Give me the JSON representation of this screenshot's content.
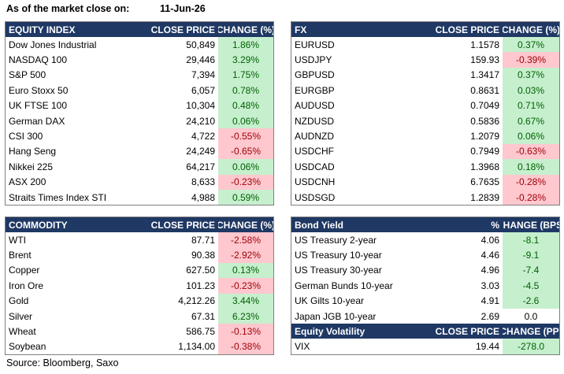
{
  "header": {
    "title": "As of the market close on:",
    "date": "11-Jun-26"
  },
  "equity": {
    "headers": [
      "EQUITY INDEX",
      "CLOSE PRICE",
      "CHANGE (%)"
    ],
    "rows": [
      {
        "name": "Dow Jones Industrial",
        "close": "50,849",
        "change": "1.86%",
        "dir": "pos"
      },
      {
        "name": "NASDAQ 100",
        "close": "29,446",
        "change": "3.29%",
        "dir": "pos"
      },
      {
        "name": "S&P 500",
        "close": "7,394",
        "change": "1.75%",
        "dir": "pos"
      },
      {
        "name": "Euro Stoxx 50",
        "close": "6,057",
        "change": "0.78%",
        "dir": "pos"
      },
      {
        "name": "UK FTSE 100",
        "close": "10,304",
        "change": "0.48%",
        "dir": "pos"
      },
      {
        "name": "German DAX",
        "close": "24,210",
        "change": "0.06%",
        "dir": "pos"
      },
      {
        "name": "CSI 300",
        "close": "4,722",
        "change": "-0.55%",
        "dir": "neg"
      },
      {
        "name": "Hang Seng",
        "close": "24,249",
        "change": "-0.65%",
        "dir": "neg"
      },
      {
        "name": "Nikkei 225",
        "close": "64,217",
        "change": "0.06%",
        "dir": "pos"
      },
      {
        "name": "ASX 200",
        "close": "8,633",
        "change": "-0.23%",
        "dir": "neg"
      },
      {
        "name": "Straits Times Index STI",
        "close": "4,988",
        "change": "0.59%",
        "dir": "pos"
      }
    ]
  },
  "fx": {
    "headers": [
      "FX",
      "CLOSE PRICE",
      "CHANGE (%)"
    ],
    "rows": [
      {
        "name": "EURUSD",
        "close": "1.1578",
        "change": "0.37%",
        "dir": "pos"
      },
      {
        "name": "USDJPY",
        "close": "159.93",
        "change": "-0.39%",
        "dir": "neg"
      },
      {
        "name": "GBPUSD",
        "close": "1.3417",
        "change": "0.37%",
        "dir": "pos"
      },
      {
        "name": "EURGBP",
        "close": "0.8631",
        "change": "0.03%",
        "dir": "pos"
      },
      {
        "name": "AUDUSD",
        "close": "0.7049",
        "change": "0.71%",
        "dir": "pos"
      },
      {
        "name": "NZDUSD",
        "close": "0.5836",
        "change": "0.67%",
        "dir": "pos"
      },
      {
        "name": "AUDNZD",
        "close": "1.2079",
        "change": "0.06%",
        "dir": "pos"
      },
      {
        "name": "USDCHF",
        "close": "0.7949",
        "change": "-0.63%",
        "dir": "neg"
      },
      {
        "name": "USDCAD",
        "close": "1.3968",
        "change": "0.18%",
        "dir": "pos"
      },
      {
        "name": "USDCNH",
        "close": "6.7635",
        "change": "-0.28%",
        "dir": "neg"
      },
      {
        "name": "USDSGD",
        "close": "1.2839",
        "change": "-0.28%",
        "dir": "neg"
      }
    ]
  },
  "commodity": {
    "headers": [
      "COMMODITY",
      "CLOSE PRICE",
      "CHANGE (%)"
    ],
    "rows": [
      {
        "name": "WTI",
        "close": "87.71",
        "change": "-2.58%",
        "dir": "neg"
      },
      {
        "name": "Brent",
        "close": "90.38",
        "change": "-2.92%",
        "dir": "neg"
      },
      {
        "name": "Copper",
        "close": "627.50",
        "change": "0.13%",
        "dir": "pos"
      },
      {
        "name": "Iron Ore",
        "close": "101.23",
        "change": "-0.23%",
        "dir": "neg"
      },
      {
        "name": "Gold",
        "close": "4,212.26",
        "change": "3.44%",
        "dir": "pos"
      },
      {
        "name": "Silver",
        "close": "67.31",
        "change": "6.23%",
        "dir": "pos"
      },
      {
        "name": "Wheat",
        "close": "586.75",
        "change": "-0.13%",
        "dir": "neg"
      },
      {
        "name": "Soybean",
        "close": "1,134.00",
        "change": "-0.38%",
        "dir": "neg"
      }
    ]
  },
  "bond": {
    "headers": [
      "Bond Yield",
      "%",
      "CHANGE (BPS)"
    ],
    "rows": [
      {
        "name": "US Treasury 2-year",
        "close": "4.06",
        "change": "-8.1",
        "dir": "pos"
      },
      {
        "name": "US Treasury 10-year",
        "close": "4.46",
        "change": "-9.1",
        "dir": "pos"
      },
      {
        "name": "US Treasury 30-year",
        "close": "4.96",
        "change": "-7.4",
        "dir": "pos"
      },
      {
        "name": "German Bunds 10-year",
        "close": "3.03",
        "change": "-4.5",
        "dir": "pos"
      },
      {
        "name": "UK Gilts 10-year",
        "close": "4.91",
        "change": "-2.6",
        "dir": "pos"
      },
      {
        "name": "Japan JGB 10-year",
        "close": "2.69",
        "change": "0.0",
        "dir": "neu"
      }
    ]
  },
  "volatility": {
    "headers": [
      "Equity Volatility",
      "CLOSE PRICE",
      "CHANGE (PP)"
    ],
    "rows": [
      {
        "name": "VIX",
        "close": "19.44",
        "change": "-278.0",
        "dir": "pos"
      }
    ]
  },
  "source": "Source: Bloomberg, Saxo"
}
